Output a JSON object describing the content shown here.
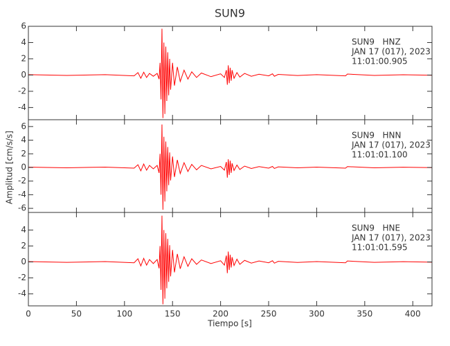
{
  "chart_data": [
    {
      "type": "line",
      "title": "SUN9",
      "color": "#ff0000",
      "annotations": [
        "SUN9   HNZ",
        "JAN 17 (017), 2023",
        "11:01:00.905"
      ],
      "xlim": [
        0,
        420
      ],
      "ylim": [
        -5.5,
        6
      ],
      "yticks": [
        -4,
        -2,
        0,
        2,
        4,
        6
      ],
      "x": [
        0,
        40,
        80,
        110,
        114,
        117,
        120,
        123,
        126,
        130,
        134,
        136,
        137,
        138,
        139,
        140,
        141,
        142,
        143,
        144,
        145,
        146,
        147,
        148,
        150,
        152,
        155,
        158,
        162,
        166,
        170,
        175,
        180,
        190,
        200,
        204,
        206,
        207,
        208,
        209,
        210,
        211,
        212,
        214,
        217,
        220,
        225,
        232,
        240,
        250,
        254,
        256,
        260,
        280,
        300,
        330,
        332,
        360,
        390,
        420
      ],
      "values": [
        0.05,
        -0.05,
        0.05,
        -0.1,
        0.3,
        -0.4,
        0.35,
        -0.3,
        0.2,
        -0.15,
        0.2,
        -0.5,
        1.5,
        -3,
        5.7,
        -5.3,
        4,
        -4.8,
        3.5,
        -3.2,
        2.8,
        -2.5,
        2,
        -1.8,
        1.5,
        -1.3,
        1,
        -0.8,
        0.6,
        -0.5,
        0.4,
        -0.3,
        0.25,
        -0.2,
        0.15,
        -0.3,
        0.6,
        -1.2,
        1.2,
        -1,
        0.9,
        -0.7,
        0.6,
        -0.4,
        0.3,
        -0.25,
        0.2,
        -0.15,
        0.1,
        -0.1,
        0.15,
        -0.15,
        0.08,
        -0.06,
        0.05,
        -0.1,
        0.12,
        -0.05,
        0.04,
        -0.03
      ]
    },
    {
      "type": "line",
      "y_label": "Amplitud [cm/s/s]",
      "color": "#ff0000",
      "annotations": [
        "SUN9   HNN",
        "JAN 17 (017), 2023",
        "11:01:01.100"
      ],
      "xlim": [
        0,
        420
      ],
      "ylim": [
        -6.6,
        7
      ],
      "yticks": [
        -6,
        -4,
        -2,
        0,
        2,
        4,
        6
      ],
      "x": [
        0,
        40,
        80,
        110,
        114,
        117,
        120,
        123,
        126,
        130,
        134,
        136,
        137,
        138,
        139,
        140,
        141,
        142,
        143,
        144,
        145,
        146,
        147,
        148,
        150,
        152,
        155,
        158,
        162,
        166,
        170,
        175,
        180,
        190,
        200,
        204,
        206,
        207,
        208,
        209,
        210,
        211,
        212,
        214,
        217,
        220,
        225,
        232,
        240,
        250,
        254,
        256,
        260,
        280,
        300,
        330,
        332,
        360,
        390,
        420
      ],
      "values": [
        0.05,
        -0.05,
        0.05,
        -0.1,
        0.4,
        -0.5,
        0.5,
        -0.4,
        0.3,
        -0.2,
        0.3,
        -0.8,
        2,
        -4,
        6.3,
        -6.2,
        4.5,
        -5,
        3.8,
        -3.5,
        3,
        -2.6,
        2.2,
        -1.9,
        1.6,
        -1.4,
        1.1,
        -0.9,
        0.7,
        -0.6,
        0.45,
        -0.35,
        0.3,
        -0.2,
        0.15,
        -0.4,
        0.8,
        -1.5,
        1.2,
        -1.1,
        1,
        -0.8,
        0.6,
        -0.45,
        0.35,
        -0.3,
        0.2,
        -0.15,
        0.12,
        -0.1,
        0.15,
        -0.15,
        0.08,
        -0.06,
        0.05,
        -0.1,
        0.12,
        -0.05,
        0.04,
        -0.03
      ]
    },
    {
      "type": "line",
      "x_label": "Tiempo [s]",
      "color": "#ff0000",
      "annotations": [
        "SUN9   HNE",
        "JAN 17 (017), 2023",
        "11:01:01.595"
      ],
      "xlim": [
        0,
        420
      ],
      "xticks": [
        0,
        50,
        100,
        150,
        200,
        250,
        300,
        350,
        400
      ],
      "ylim": [
        -5.5,
        6.2
      ],
      "yticks": [
        -4,
        -2,
        0,
        2,
        4
      ],
      "x": [
        0,
        40,
        80,
        110,
        114,
        117,
        120,
        123,
        126,
        130,
        134,
        136,
        137,
        138,
        139,
        140,
        141,
        142,
        143,
        144,
        145,
        146,
        147,
        148,
        150,
        152,
        155,
        158,
        162,
        166,
        170,
        175,
        180,
        190,
        200,
        204,
        206,
        207,
        208,
        209,
        210,
        211,
        212,
        214,
        217,
        220,
        225,
        232,
        240,
        250,
        254,
        256,
        260,
        280,
        300,
        330,
        332,
        360,
        390,
        420
      ],
      "values": [
        0.05,
        -0.05,
        0.05,
        -0.1,
        0.4,
        -0.5,
        0.45,
        -0.4,
        0.3,
        -0.2,
        0.3,
        -0.8,
        2,
        -3.5,
        5.8,
        -5.3,
        4,
        -4.6,
        3.6,
        -3.3,
        2.9,
        -2.5,
        2.1,
        -1.8,
        1.5,
        -1.3,
        1,
        -0.85,
        0.65,
        -0.55,
        0.4,
        -0.3,
        0.25,
        -0.2,
        0.15,
        -0.4,
        0.8,
        -1.4,
        1.3,
        -1,
        0.9,
        -0.7,
        0.6,
        -0.45,
        0.35,
        -0.3,
        0.2,
        -0.15,
        0.12,
        -0.1,
        0.15,
        -0.15,
        0.08,
        -0.06,
        0.05,
        -0.1,
        0.12,
        -0.05,
        0.04,
        -0.03
      ]
    }
  ]
}
